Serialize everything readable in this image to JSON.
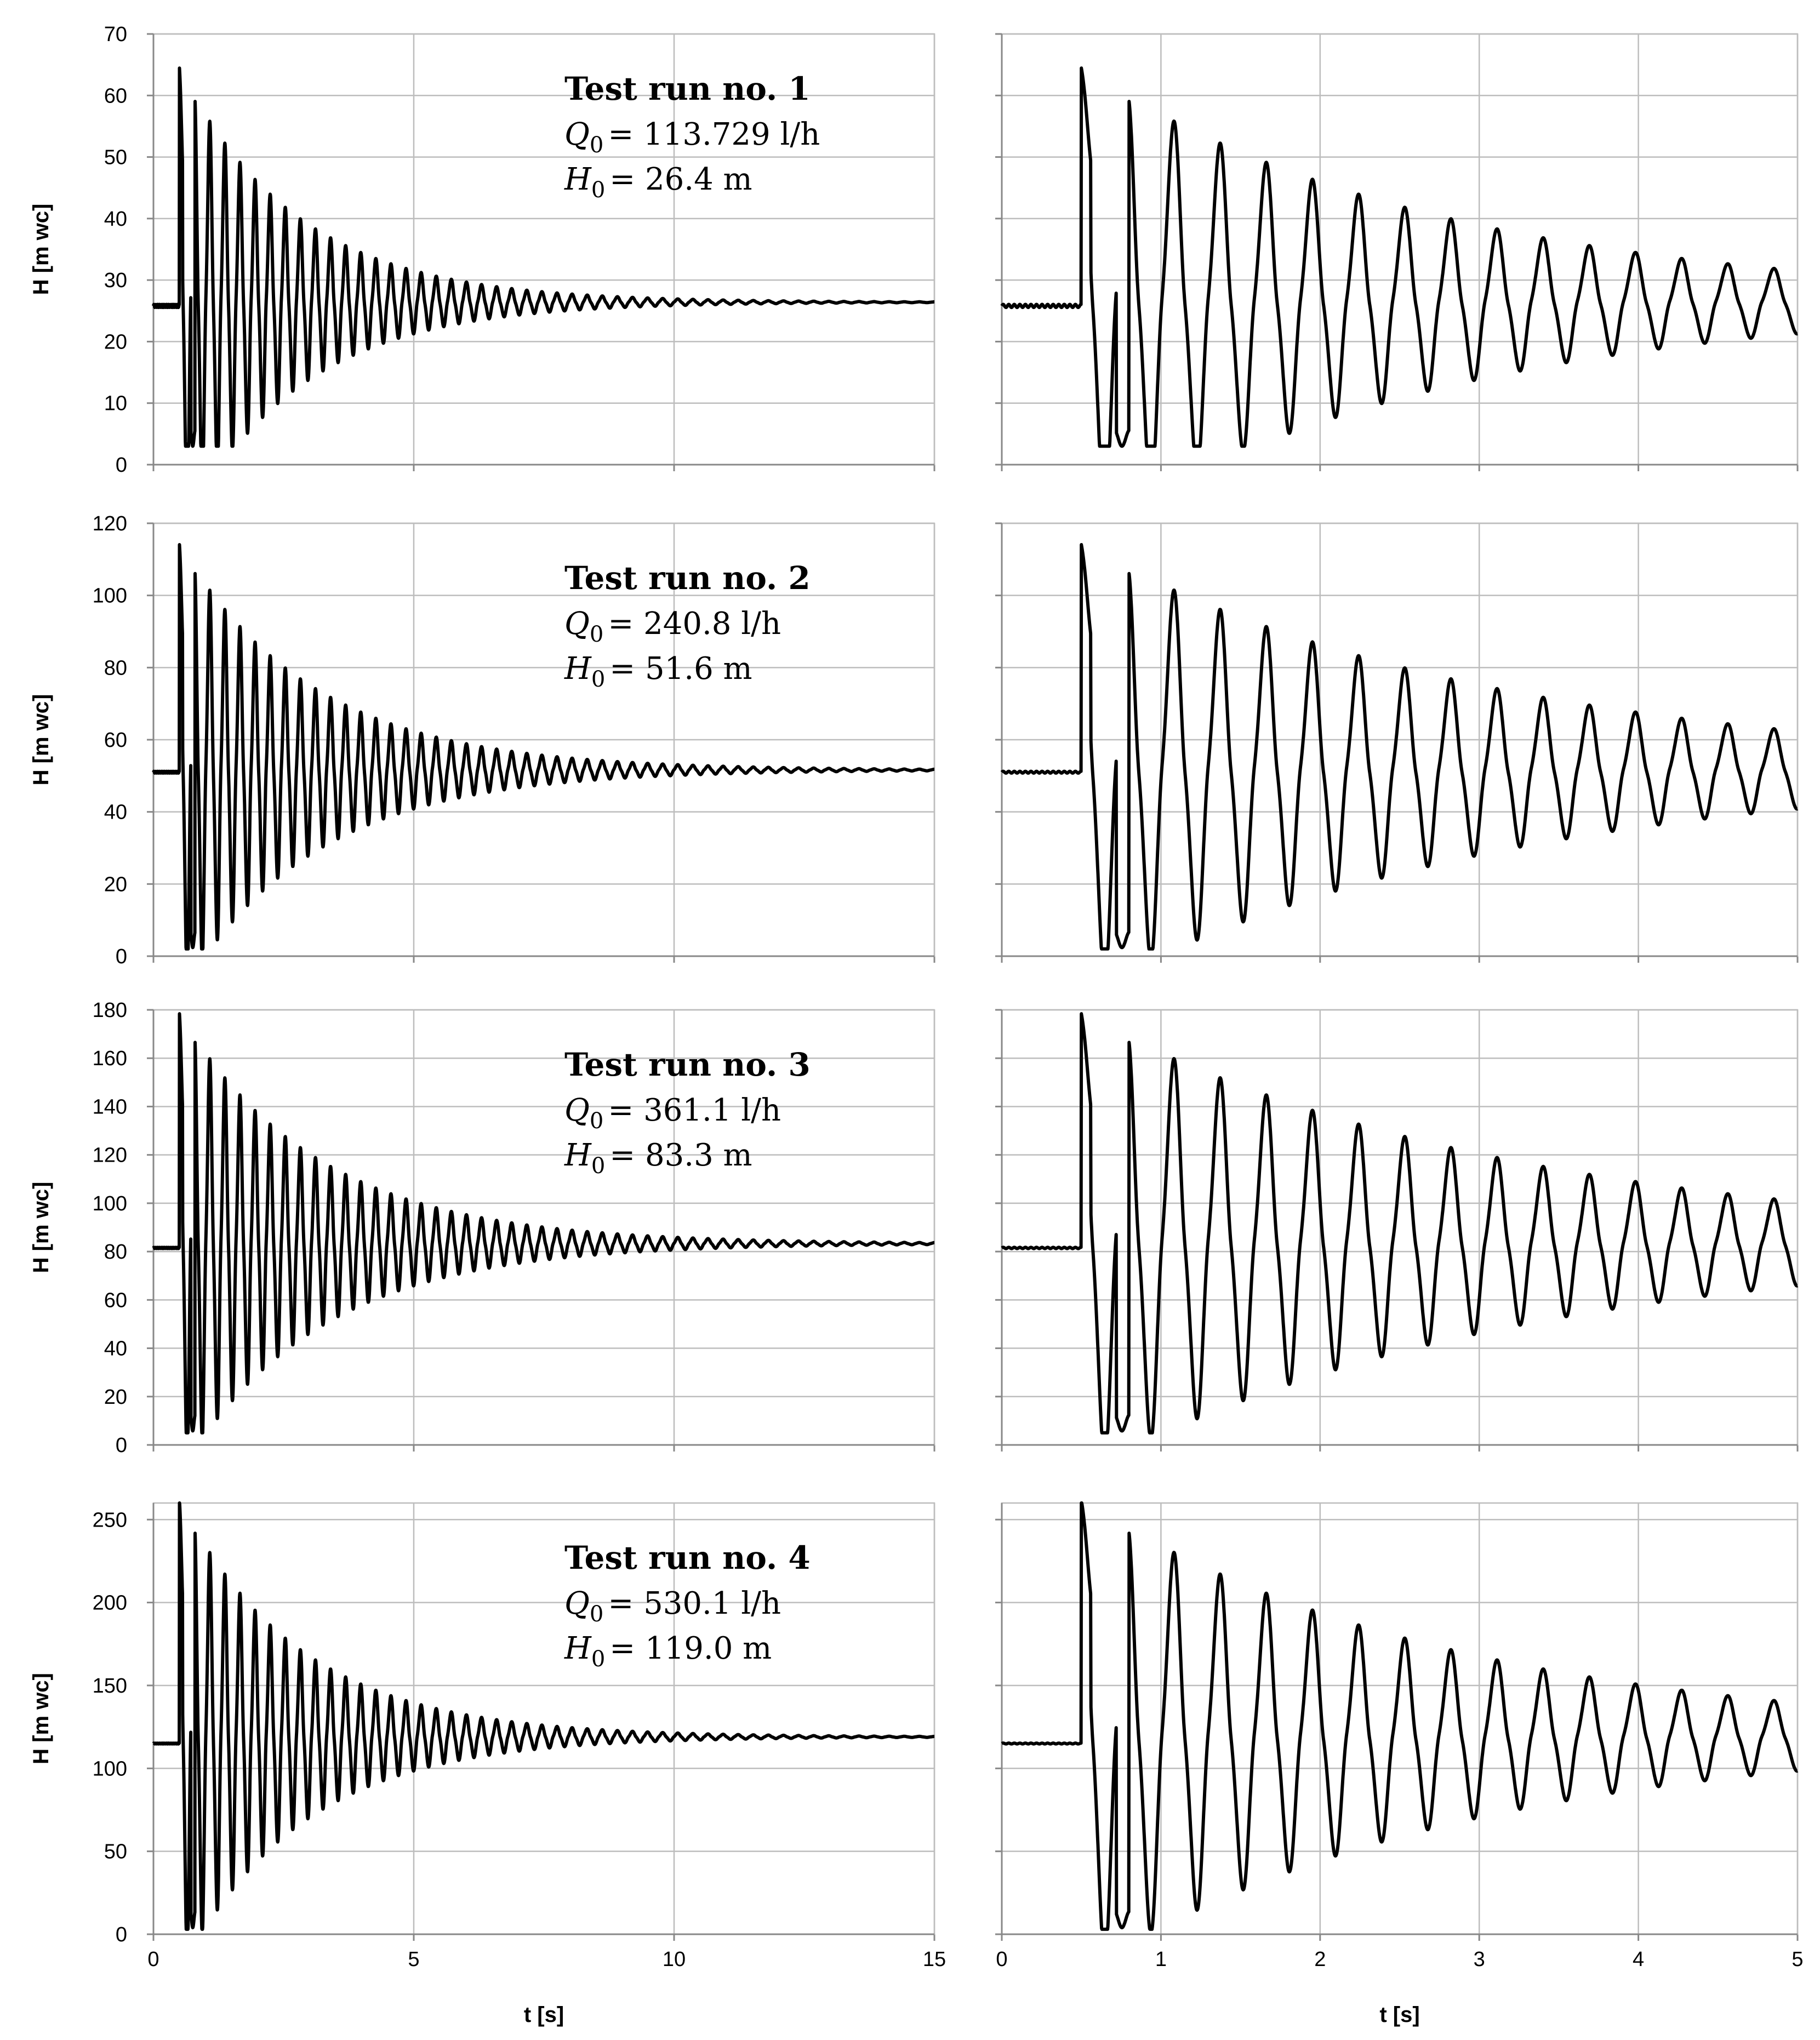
{
  "chart_data": {
    "type": "line",
    "description_units": {
      "x": "t [s]",
      "y": "H [m wc]"
    },
    "columns": [
      {
        "id": "full",
        "xlim": [
          0,
          15
        ],
        "xticks": [
          0,
          5,
          10,
          15
        ],
        "xtick_labels": [
          "0",
          "5",
          "10",
          "15"
        ],
        "xlabel": "t [s]"
      },
      {
        "id": "zoom",
        "xlim": [
          0,
          5
        ],
        "xticks": [
          0,
          1,
          2,
          3,
          4,
          5
        ],
        "xtick_labels": [
          "0",
          "1",
          "2",
          "3",
          "4",
          "5"
        ],
        "xlabel": "t [s]"
      }
    ],
    "runs": [
      {
        "title": "Test run no. 1",
        "q_sym": "Q",
        "q_sub": "0",
        "q_value": "= 113.729  l/h",
        "h_sym": "H",
        "h_sub": "0",
        "h_value": "= 26.4 m",
        "ylabel": "H [m wc]",
        "ylim": [
          0,
          70
        ],
        "yticks": [
          0,
          10,
          20,
          30,
          40,
          50,
          60,
          70
        ],
        "ytick_labels": [
          "0",
          "10",
          "20",
          "30",
          "40",
          "50",
          "60",
          "70"
        ],
        "H_initial": 25.8,
        "H_final": 26.4,
        "H_peak": 63.5,
        "H_min": 3.0,
        "t_closure": 0.5,
        "period_s": 0.29,
        "tail_amplitude_5s": 5.0
      },
      {
        "title": "Test run no. 2",
        "q_sym": "Q",
        "q_sub": "0",
        "q_value": "= 240.8  l/h",
        "h_sym": "H",
        "h_sub": "0",
        "h_value": "= 51.6 m",
        "ylabel": "H [m wc]",
        "ylim": [
          0,
          120
        ],
        "yticks": [
          0,
          20,
          40,
          60,
          80,
          100,
          120
        ],
        "ytick_labels": [
          "0",
          "20",
          "40",
          "60",
          "80",
          "100",
          "120"
        ],
        "H_initial": 51.0,
        "H_final": 51.6,
        "H_peak": 112.5,
        "H_min": 2.0,
        "t_closure": 0.5,
        "period_s": 0.29,
        "tail_amplitude_5s": 10.5
      },
      {
        "title": "Test run no. 3",
        "q_sym": "Q",
        "q_sub": "0",
        "q_value": "= 361.1 l/h",
        "h_sym": "H",
        "h_sub": "0",
        "h_value": "= 83.3 m",
        "ylabel": "H [m wc]",
        "ylim": [
          0,
          180
        ],
        "yticks": [
          0,
          20,
          40,
          60,
          80,
          100,
          120,
          140,
          160,
          180
        ],
        "ytick_labels": [
          "0",
          "20",
          "40",
          "60",
          "80",
          "100",
          "120",
          "140",
          "160",
          "180"
        ],
        "H_initial": 81.5,
        "H_final": 83.3,
        "H_peak": 176.0,
        "H_min": 5.0,
        "t_closure": 0.5,
        "period_s": 0.29,
        "tail_amplitude_5s": 17.0
      },
      {
        "title": "Test run no. 4",
        "q_sym": "Q",
        "q_sub": "0",
        "q_value": "= 530.1 l/h",
        "h_sym": "H",
        "h_sub": "0",
        "h_value": "= 119.0 m",
        "ylabel": "H [m wc]",
        "ylim": [
          0,
          260
        ],
        "yticks": [
          0,
          50,
          100,
          150,
          200,
          250
        ],
        "ytick_labels": [
          "0",
          "50",
          "100",
          "150",
          "200",
          "250"
        ],
        "H_initial": 115.0,
        "H_final": 119.0,
        "H_peak": 258.0,
        "H_min": 3.0,
        "t_closure": 0.5,
        "period_s": 0.29,
        "tail_amplitude_5s": 20.0
      }
    ]
  }
}
